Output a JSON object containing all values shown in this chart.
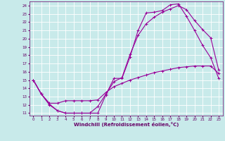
{
  "title": "",
  "xlabel": "Windchill (Refroidissement éolien,°C)",
  "background_color": "#c8eaea",
  "line_color": "#990099",
  "grid_color": "#ffffff",
  "xlim": [
    -0.5,
    23.5
  ],
  "ylim": [
    10.7,
    24.5
  ],
  "xticks": [
    0,
    1,
    2,
    3,
    4,
    5,
    6,
    7,
    8,
    9,
    10,
    11,
    12,
    13,
    14,
    15,
    16,
    17,
    18,
    19,
    20,
    21,
    22,
    23
  ],
  "yticks": [
    11,
    12,
    13,
    14,
    15,
    16,
    17,
    18,
    19,
    20,
    21,
    22,
    23,
    24
  ],
  "curve1_x": [
    0,
    1,
    2,
    3,
    4,
    5,
    6,
    7,
    8,
    9,
    10,
    11,
    12,
    13,
    14,
    15,
    16,
    17,
    18,
    19,
    20,
    21,
    22,
    23
  ],
  "curve1_y": [
    15,
    13.3,
    12.0,
    11.3,
    11.0,
    11.0,
    11.0,
    11.0,
    11.0,
    13.2,
    15.2,
    15.2,
    17.8,
    21.0,
    23.1,
    23.2,
    23.4,
    24.1,
    24.2,
    22.7,
    21.0,
    19.2,
    17.7,
    15.2
  ],
  "curve2_x": [
    0,
    1,
    2,
    3,
    4,
    5,
    6,
    7,
    8,
    9,
    10,
    11,
    12,
    13,
    14,
    15,
    16,
    17,
    18,
    19,
    20,
    21,
    22,
    23
  ],
  "curve2_y": [
    15,
    13.3,
    12.1,
    11.3,
    11.0,
    11.0,
    11.0,
    11.0,
    11.8,
    13.3,
    14.8,
    15.3,
    18.1,
    20.4,
    21.8,
    22.6,
    23.2,
    23.6,
    24.0,
    23.5,
    22.2,
    21.1,
    20.1,
    16.2
  ],
  "curve3_x": [
    0,
    1,
    2,
    3,
    4,
    5,
    6,
    7,
    8,
    9,
    10,
    11,
    12,
    13,
    14,
    15,
    16,
    17,
    18,
    19,
    20,
    21,
    22,
    23
  ],
  "curve3_y": [
    15,
    13.3,
    12.2,
    12.2,
    12.5,
    12.5,
    12.5,
    12.5,
    12.6,
    13.5,
    14.2,
    14.6,
    15.0,
    15.3,
    15.6,
    15.9,
    16.1,
    16.3,
    16.5,
    16.6,
    16.7,
    16.7,
    16.7,
    15.8
  ],
  "marker": "+",
  "markersize": 3,
  "linewidth": 0.8,
  "tick_fontsize": 4.0,
  "xlabel_fontsize": 5.0
}
